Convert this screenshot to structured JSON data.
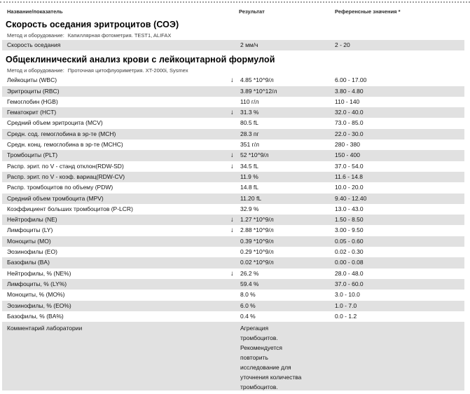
{
  "header": {
    "col_name": "Название/показатель",
    "col_result": "Результат",
    "col_reference": "Референсные значения *"
  },
  "sections": [
    {
      "title": "Скорость оседания эритроцитов (СОЭ)",
      "method_label": "Метод и оборудование:",
      "method_value": "Капиллярная фотометрия. TEST1, ALIFAX",
      "rows": [
        {
          "name": "Скорость оседания",
          "flag": "",
          "result": "2 мм/ч",
          "reference": "2 - 20",
          "shaded": true
        }
      ]
    },
    {
      "title": "Общеклинический анализ крови с лейкоцитарной формулой",
      "method_label": "Метод и оборудование:",
      "method_value": "Проточная цитофлуориметрия. XT-2000i, Sysmex",
      "rows": [
        {
          "name": "Лейкоциты (WBC)",
          "flag": "↓",
          "result": "4.85 *10^9/л",
          "reference": "6.00 - 17.00",
          "shaded": false
        },
        {
          "name": "Эритроциты (RBC)",
          "flag": "",
          "result": "3.89 *10^12/л",
          "reference": "3.80 - 4.80",
          "shaded": true
        },
        {
          "name": "Гемоглобин (HGB)",
          "flag": "",
          "result": "110 г/л",
          "reference": "110 - 140",
          "shaded": false
        },
        {
          "name": "Гематокрит (HCT)",
          "flag": "↓",
          "result": "31.3 %",
          "reference": "32.0 - 40.0",
          "shaded": true
        },
        {
          "name": "Средний объем эритроцита (MCV)",
          "flag": "",
          "result": "80.5 fL",
          "reference": "73.0 - 85.0",
          "shaded": false
        },
        {
          "name": "Средн. сод. гемоглобина в эр-те (MCH)",
          "flag": "",
          "result": "28.3 пг",
          "reference": "22.0 - 30.0",
          "shaded": true
        },
        {
          "name": "Средн. конц. гемоглобина в эр-те (MCHC)",
          "flag": "",
          "result": "351 г/л",
          "reference": "280 - 380",
          "shaded": false
        },
        {
          "name": "Тромбоциты (PLT)",
          "flag": "↓",
          "result": "52 *10^9/л",
          "reference": "150 - 400",
          "shaded": true
        },
        {
          "name": "Распр. эрит. по V - станд отклон(RDW-SD)",
          "flag": "↓",
          "result": "34.5 fL",
          "reference": "37.0 - 54.0",
          "shaded": false
        },
        {
          "name": "Распр. эрит. по V - коэф. вариац(RDW-CV)",
          "flag": "",
          "result": "11.9 %",
          "reference": "11.6 - 14.8",
          "shaded": true
        },
        {
          "name": "Распр. тромбоцитов по объему (PDW)",
          "flag": "",
          "result": "14.8 fL",
          "reference": "10.0 - 20.0",
          "shaded": false
        },
        {
          "name": "Средний объем тромбоцита (MPV)",
          "flag": "",
          "result": "11.20 fL",
          "reference": "9.40 - 12.40",
          "shaded": true
        },
        {
          "name": "Коэффициент больших тромбоцитов (P-LCR)",
          "flag": "",
          "result": "32.9 %",
          "reference": "13.0 - 43.0",
          "shaded": false
        },
        {
          "name": "Нейтрофилы (NE)",
          "flag": "↓",
          "result": "1.27 *10^9/л",
          "reference": "1.50 - 8.50",
          "shaded": true
        },
        {
          "name": "Лимфоциты (LY)",
          "flag": "↓",
          "result": "2.88 *10^9/л",
          "reference": "3.00 - 9.50",
          "shaded": false
        },
        {
          "name": "Моноциты (MO)",
          "flag": "",
          "result": "0.39 *10^9/л",
          "reference": "0.05 - 0.60",
          "shaded": true
        },
        {
          "name": "Эозинофилы (EO)",
          "flag": "",
          "result": "0.29 *10^9/л",
          "reference": "0.02 - 0.30",
          "shaded": false
        },
        {
          "name": "Базофилы (BA)",
          "flag": "",
          "result": "0.02 *10^9/л",
          "reference": "0.00 - 0.08",
          "shaded": true
        },
        {
          "name": "Нейтрофилы, % (NE%)",
          "flag": "↓",
          "result": "26.2 %",
          "reference": "28.0 - 48.0",
          "shaded": false
        },
        {
          "name": "Лимфоциты, % (LY%)",
          "flag": "",
          "result": "59.4 %",
          "reference": "37.0 - 60.0",
          "shaded": true
        },
        {
          "name": "Моноциты, % (MO%)",
          "flag": "",
          "result": "8.0 %",
          "reference": "3.0 - 10.0",
          "shaded": false
        },
        {
          "name": "Эозинофилы, % (EO%)",
          "flag": "",
          "result": "6.0 %",
          "reference": "1.0 - 7.0",
          "shaded": true
        },
        {
          "name": "Базофилы, % (BA%)",
          "flag": "",
          "result": "0.4 %",
          "reference": "0.0 - 1.2",
          "shaded": false
        },
        {
          "name": "Комментарий лаборатории",
          "flag": "",
          "result_lines": [
            "Агрегация",
            "тромбоцитов.",
            "Рекомендуется",
            "повторить",
            "исследование для",
            "уточнения количества",
            "тромбоцитов."
          ],
          "reference": "",
          "shaded": true,
          "tall": true
        }
      ]
    }
  ],
  "colors": {
    "band": "#e1e1e1",
    "text": "#1b1b1b",
    "flag": "#000000"
  }
}
